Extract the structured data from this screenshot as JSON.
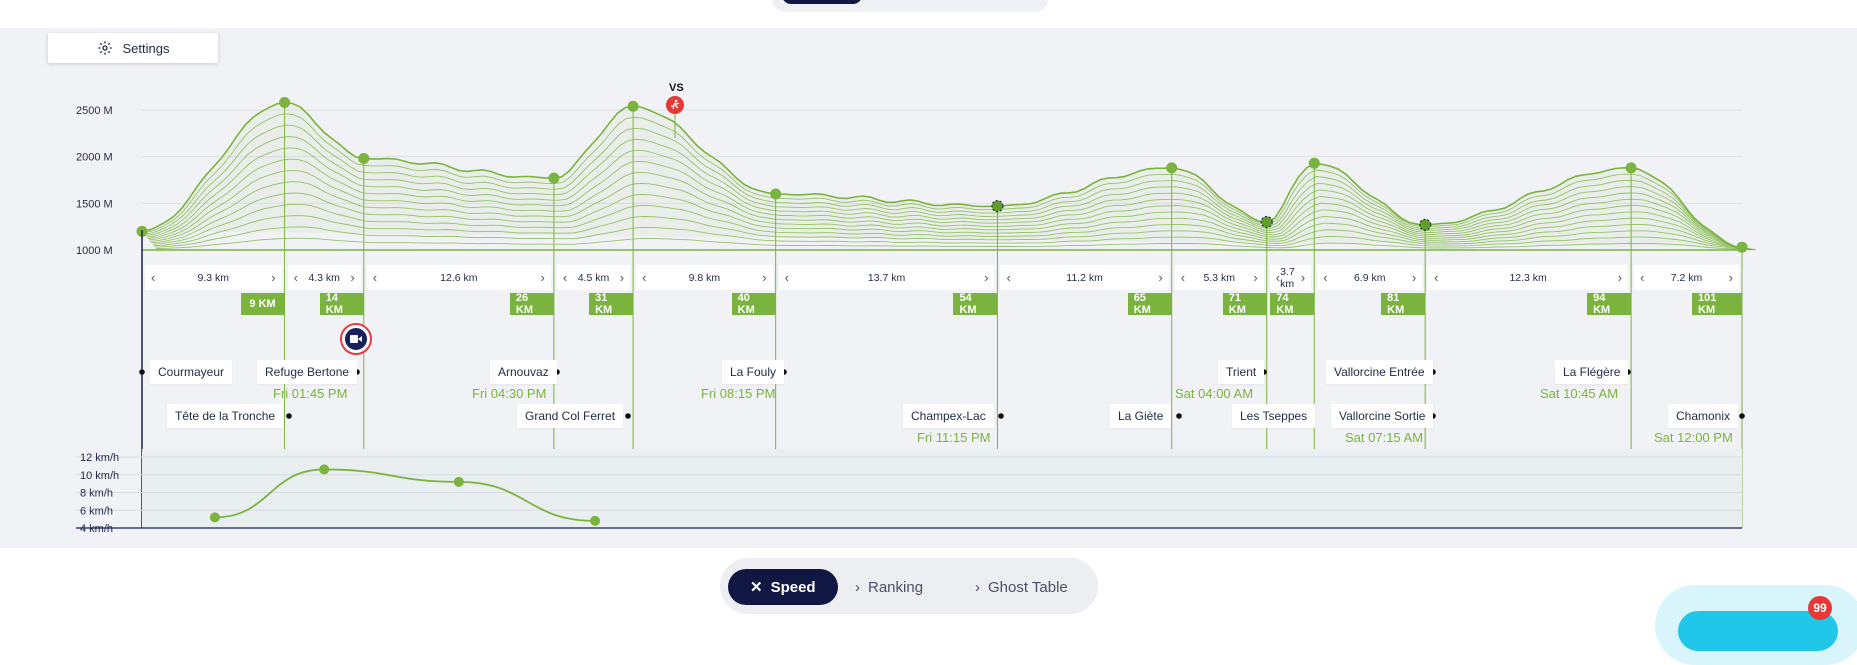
{
  "settings": {
    "label": "Settings"
  },
  "chart_data": [
    {
      "type": "area",
      "title": "",
      "ylabel": "",
      "y_ticks": [
        "2500 M",
        "2000 M",
        "1500 M",
        "1000 M"
      ],
      "ylim": [
        1000,
        2500
      ],
      "checkpoints": [
        {
          "name": "Courmayeur",
          "km": 0,
          "alt": 1200
        },
        {
          "name": "Tête de la Tronche",
          "km": 9,
          "alt": 2580
        },
        {
          "name": "Refuge Bertone",
          "km": 14,
          "alt": 1980
        },
        {
          "name": "Arnouvaz",
          "km": 26,
          "alt": 1770
        },
        {
          "name": "Grand Col Ferret",
          "km": 31,
          "alt": 2540
        },
        {
          "name": "La Fouly",
          "km": 40,
          "alt": 1600
        },
        {
          "name": "Champex-Lac",
          "km": 54,
          "alt": 1470
        },
        {
          "name": "La Giète",
          "km": 65,
          "alt": 1880
        },
        {
          "name": "Trient",
          "km": 71,
          "alt": 1300
        },
        {
          "name": "Les Tseppes",
          "km": 74,
          "alt": 1930
        },
        {
          "name": "Vallorcine Entrée",
          "km": 81,
          "alt": 1270
        },
        {
          "name": "La Flégère",
          "km": 94,
          "alt": 1880
        },
        {
          "name": "Chamonix",
          "km": 101,
          "alt": 1030
        }
      ]
    },
    {
      "type": "line",
      "title": "",
      "y_ticks": [
        "12 km/h",
        "10 km/h",
        "8 km/h",
        "6 km/h",
        "4 km/h"
      ],
      "ylim": [
        4,
        12
      ],
      "points": [
        {
          "km": 4.6,
          "speed": 5.2
        },
        {
          "km": 11.5,
          "speed": 10.6
        },
        {
          "km": 20,
          "speed": 9.2
        },
        {
          "km": 28.6,
          "speed": 4.8
        }
      ]
    }
  ],
  "segments": [
    {
      "label": "9.3 km"
    },
    {
      "label": "4.3 km"
    },
    {
      "label": "12.6 km"
    },
    {
      "label": "4.5 km"
    },
    {
      "label": "9.8 km"
    },
    {
      "label": "13.7 km"
    },
    {
      "label": "11.2 km"
    },
    {
      "label": "5.3 km"
    },
    {
      "label": "3.7 km"
    },
    {
      "label": "6.9 km"
    },
    {
      "label": "12.3 km"
    },
    {
      "label": "7.2 km"
    }
  ],
  "km_badges": [
    "9 KM",
    "14 KM",
    "26 KM",
    "31 KM",
    "40 KM",
    "54 KM",
    "65 KM",
    "71 KM",
    "74 KM",
    "81 KM",
    "94 KM",
    "101 KM"
  ],
  "labels": {
    "courmayeur": "Courmayeur",
    "tete": "Tête de la Tronche",
    "bertone": "Refuge Bertone",
    "arnouvaz": "Arnouvaz",
    "colferret": "Grand Col Ferret",
    "fouly": "La Fouly",
    "champex": "Champex-Lac",
    "giete": "La Giète",
    "trient": "Trient",
    "tseppes": "Les Tseppes",
    "vallorcine_entree": "Vallorcine Entrée",
    "vallorcine_sortie": "Vallorcine Sortie",
    "flegere": "La Flégère",
    "chamonix": "Chamonix"
  },
  "times": {
    "bertone": "Fri 01:45 PM",
    "arnouvaz": "Fri 04:30 PM",
    "fouly": "Fri 08:15 PM",
    "champex": "Fri 11:15 PM",
    "trient": "Sat 04:00 AM",
    "vallorcine": "Sat 07:15 AM",
    "flegere": "Sat 10:45 AM",
    "chamonix": "Sat 12:00 PM"
  },
  "vs_label": "VS",
  "tabs": [
    {
      "label": "Speed",
      "icon": "close-icon"
    },
    {
      "label": "Ranking",
      "icon": "chevron-right-icon"
    },
    {
      "label": "Ghost Table",
      "icon": "chevron-right-icon"
    }
  ],
  "notification_count": "99",
  "colors": {
    "accent_green": "#7ab33e",
    "navy": "#0f1742",
    "red": "#e53935",
    "cyan": "#21c7e8"
  }
}
